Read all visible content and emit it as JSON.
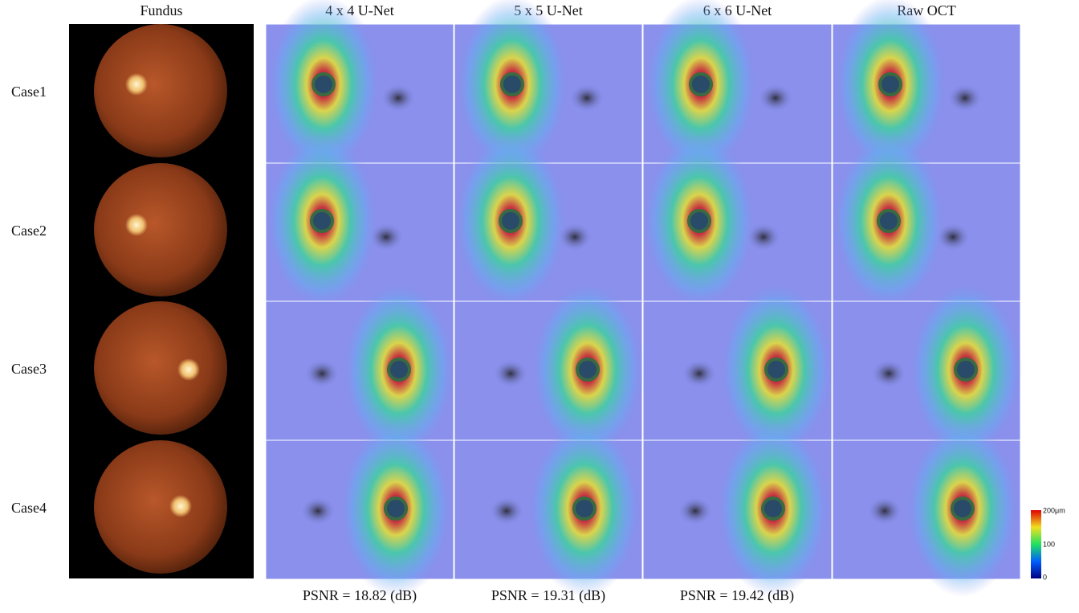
{
  "columns": [
    "Fundus",
    "4 x 4 U-Net",
    "5 x 5 U-Net",
    "6 x 6 U-Net",
    "Raw OCT"
  ],
  "rows": [
    "Case1",
    "Case2",
    "Case3",
    "Case4"
  ],
  "psnr": [
    "PSNR = 18.82 (dB)",
    "PSNR = 19.31 (dB)",
    "PSNR = 19.42 (dB)"
  ],
  "colorbar": {
    "labels": [
      "200μm",
      "100",
      "0"
    ]
  }
}
